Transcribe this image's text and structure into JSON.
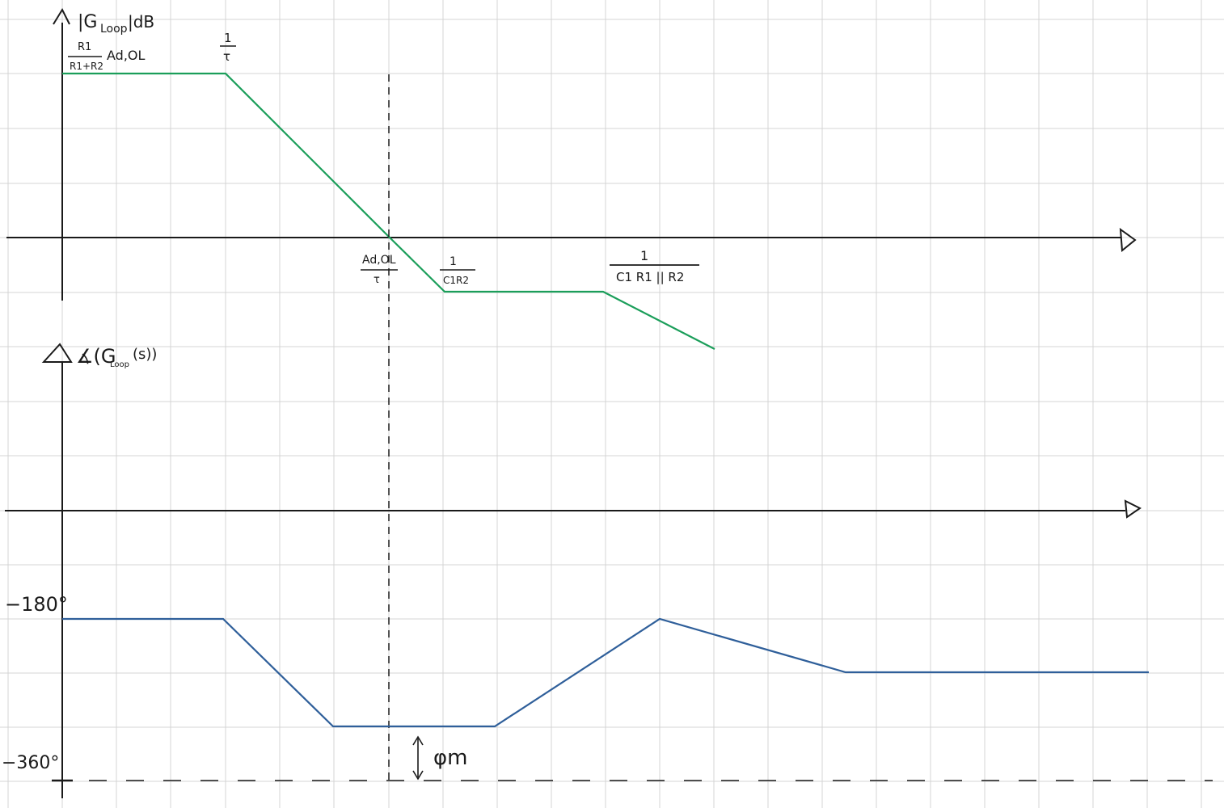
{
  "magnitude_plot": {
    "y_axis_label": "|G",
    "y_axis_label_sub": "Loop",
    "y_axis_label_unit": "|dB",
    "dc_gain_num": "R1",
    "dc_gain_den": "R1+R2",
    "dc_gain_suffix": "Ad,OL",
    "pole1_num": "1",
    "pole1_den": "τ",
    "crossover_num": "Ad,OL",
    "crossover_den": "τ",
    "zero_num": "1",
    "zero_den": "C1R2",
    "pole2_num": "1",
    "pole2_den": "C1  R1 || R2",
    "line_color": "#1b9e5a"
  },
  "phase_plot": {
    "y_axis_label": "∡(G",
    "y_axis_label_sub": "Loop",
    "y_axis_label_tail": "(s))",
    "label_minus180": "−180°",
    "label_minus360": "−360°",
    "phase_margin_label": "φm",
    "line_color": "#2f5f9a"
  },
  "colors": {
    "grid": "#d4d4d4",
    "axis": "#1a1a1a"
  }
}
